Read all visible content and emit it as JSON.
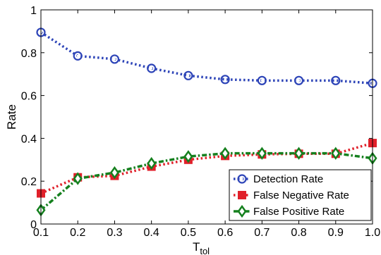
{
  "chart_data": {
    "type": "line",
    "x": [
      0.1,
      0.2,
      0.3,
      0.4,
      0.5,
      0.6,
      0.7,
      0.8,
      0.9,
      1.0
    ],
    "xticks": [
      "0.1",
      "0.2",
      "0.3",
      "0.4",
      "0.5",
      "0.6",
      "0.7",
      "0.8",
      "0.9",
      "1.0"
    ],
    "yticks": [
      "0",
      "0.2",
      "0.4",
      "0.6",
      "0.8",
      "1"
    ],
    "xlim": [
      0.1,
      1.0
    ],
    "ylim": [
      0,
      1
    ],
    "xlabel_main": "T",
    "xlabel_sub": "tol",
    "ylabel": "Rate",
    "grid": false,
    "legend_position": "bottom-right",
    "series": [
      {
        "name": "Detection Rate",
        "values": [
          0.895,
          0.785,
          0.77,
          0.727,
          0.693,
          0.675,
          0.67,
          0.67,
          0.67,
          0.657
        ],
        "color": "#2e45b8",
        "marker": "circle",
        "linestyle": "dotted"
      },
      {
        "name": "False Negative Rate",
        "values": [
          0.143,
          0.218,
          0.225,
          0.268,
          0.3,
          0.318,
          0.325,
          0.328,
          0.328,
          0.378
        ],
        "color": "#e0202a",
        "marker": "square",
        "linestyle": "dotted"
      },
      {
        "name": "False Positive Rate",
        "values": [
          0.065,
          0.212,
          0.24,
          0.283,
          0.315,
          0.33,
          0.33,
          0.33,
          0.33,
          0.307
        ],
        "color": "#15801e",
        "marker": "diamond",
        "linestyle": "dash-dot"
      }
    ]
  }
}
